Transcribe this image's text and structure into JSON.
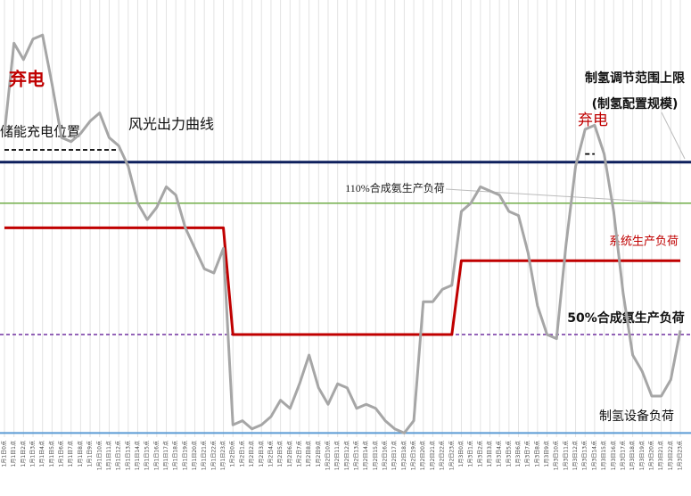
{
  "chart_data": {
    "type": "line",
    "grid": true,
    "ylim": [
      0,
      100
    ],
    "categories": [
      "1月1日0点",
      "1月1日1点",
      "1月1日2点",
      "1月1日3点",
      "1月1日4点",
      "1月1日5点",
      "1月1日6点",
      "1月1日7点",
      "1月1日8点",
      "1月1日9点",
      "1月1日10点",
      "1月1日11点",
      "1月1日12点",
      "1月1日13点",
      "1月1日14点",
      "1月1日15点",
      "1月1日16点",
      "1月1日17点",
      "1月1日18点",
      "1月1日19点",
      "1月1日20点",
      "1月1日21点",
      "1月1日22点",
      "1月1日23点",
      "1月2日0点",
      "1月2日1点",
      "1月2日2点",
      "1月2日3点",
      "1月2日4点",
      "1月2日5点",
      "1月2日6点",
      "1月2日7点",
      "1月2日8点",
      "1月2日9点",
      "1月2日10点",
      "1月2日11点",
      "1月2日12点",
      "1月2日13点",
      "1月2日14点",
      "1月2日15点",
      "1月2日16点",
      "1月2日17点",
      "1月2日18点",
      "1月2日19点",
      "1月2日20点",
      "1月2日21点",
      "1月2日22点",
      "1月2日23点",
      "1月3日0点",
      "1月3日1点",
      "1月3日2点",
      "1月3日3点",
      "1月3日4点",
      "1月3日5点",
      "1月3日6点",
      "1月3日7点",
      "1月3日8点",
      "1月3日9点",
      "1月3日10点",
      "1月3日11点",
      "1月3日12点",
      "1月3日13点",
      "1月3日14点",
      "1月3日15点",
      "1月3日16点",
      "1月3日17点",
      "1月3日18点",
      "1月3日19点",
      "1月3日20点",
      "1月3日21点",
      "1月3日22点",
      "1月3日23点"
    ],
    "series": [
      {
        "name": "风光出力曲线",
        "color": "#a6a6a6",
        "values": [
          74,
          96,
          92,
          97,
          98,
          86,
          73,
          72,
          74,
          77,
          79,
          73,
          71,
          66,
          57,
          53,
          56,
          61,
          59,
          51,
          46,
          41,
          40,
          46,
          3,
          4,
          2,
          3,
          5,
          9,
          7,
          13,
          20,
          12,
          8,
          13,
          12,
          7,
          8,
          7,
          4,
          2,
          1,
          4,
          33,
          33,
          36,
          37,
          55,
          57,
          61,
          60,
          59,
          55,
          54,
          45,
          32,
          25,
          24,
          47,
          66,
          75,
          76,
          69,
          55,
          35,
          20,
          16,
          10,
          10,
          14,
          26
        ]
      },
      {
        "name": "系统生产负荷",
        "color": "#c00000",
        "values": [
          51,
          51,
          51,
          51,
          51,
          51,
          51,
          51,
          51,
          51,
          51,
          51,
          51,
          51,
          51,
          51,
          51,
          51,
          51,
          51,
          51,
          51,
          51,
          51,
          25,
          25,
          25,
          25,
          25,
          25,
          25,
          25,
          25,
          25,
          25,
          25,
          25,
          25,
          25,
          25,
          25,
          25,
          25,
          25,
          25,
          25,
          25,
          25,
          43,
          43,
          43,
          43,
          43,
          43,
          43,
          43,
          43,
          43,
          43,
          43,
          43,
          43,
          43,
          43,
          43,
          43,
          43,
          43,
          43,
          43,
          43,
          43
        ]
      },
      {
        "name": "储能充电位置",
        "color": "#000000",
        "values": [
          70,
          70,
          70,
          70,
          70,
          70,
          70,
          70,
          70,
          70,
          70,
          70,
          70,
          null,
          null,
          null,
          null,
          null,
          null,
          null,
          null,
          null,
          null,
          null,
          null,
          null,
          null,
          null,
          null,
          null,
          null,
          null,
          null,
          null,
          null,
          null,
          null,
          null,
          null,
          null,
          null,
          null,
          null,
          null,
          null,
          null,
          null,
          null,
          null,
          null,
          null,
          null,
          null,
          null,
          null,
          null,
          null,
          null,
          null,
          null,
          null,
          69,
          69,
          null,
          null,
          null,
          null,
          null,
          null,
          null,
          null,
          null
        ]
      }
    ],
    "reference_lines": [
      {
        "label": "制氢调节范围上限",
        "value": 67,
        "color": "#0d1f5c"
      },
      {
        "label": "110%合成氨生产负荷",
        "value": 57,
        "color": "#70ad47"
      },
      {
        "label": "50%合成氨生产负荷",
        "value": 25,
        "color": "#7030a0"
      },
      {
        "label": "制氢设备负荷",
        "value": 1,
        "color": "#5b9bd5"
      }
    ],
    "annotations": [
      "弃电",
      "弃电",
      "(制氢配置规模)"
    ]
  }
}
